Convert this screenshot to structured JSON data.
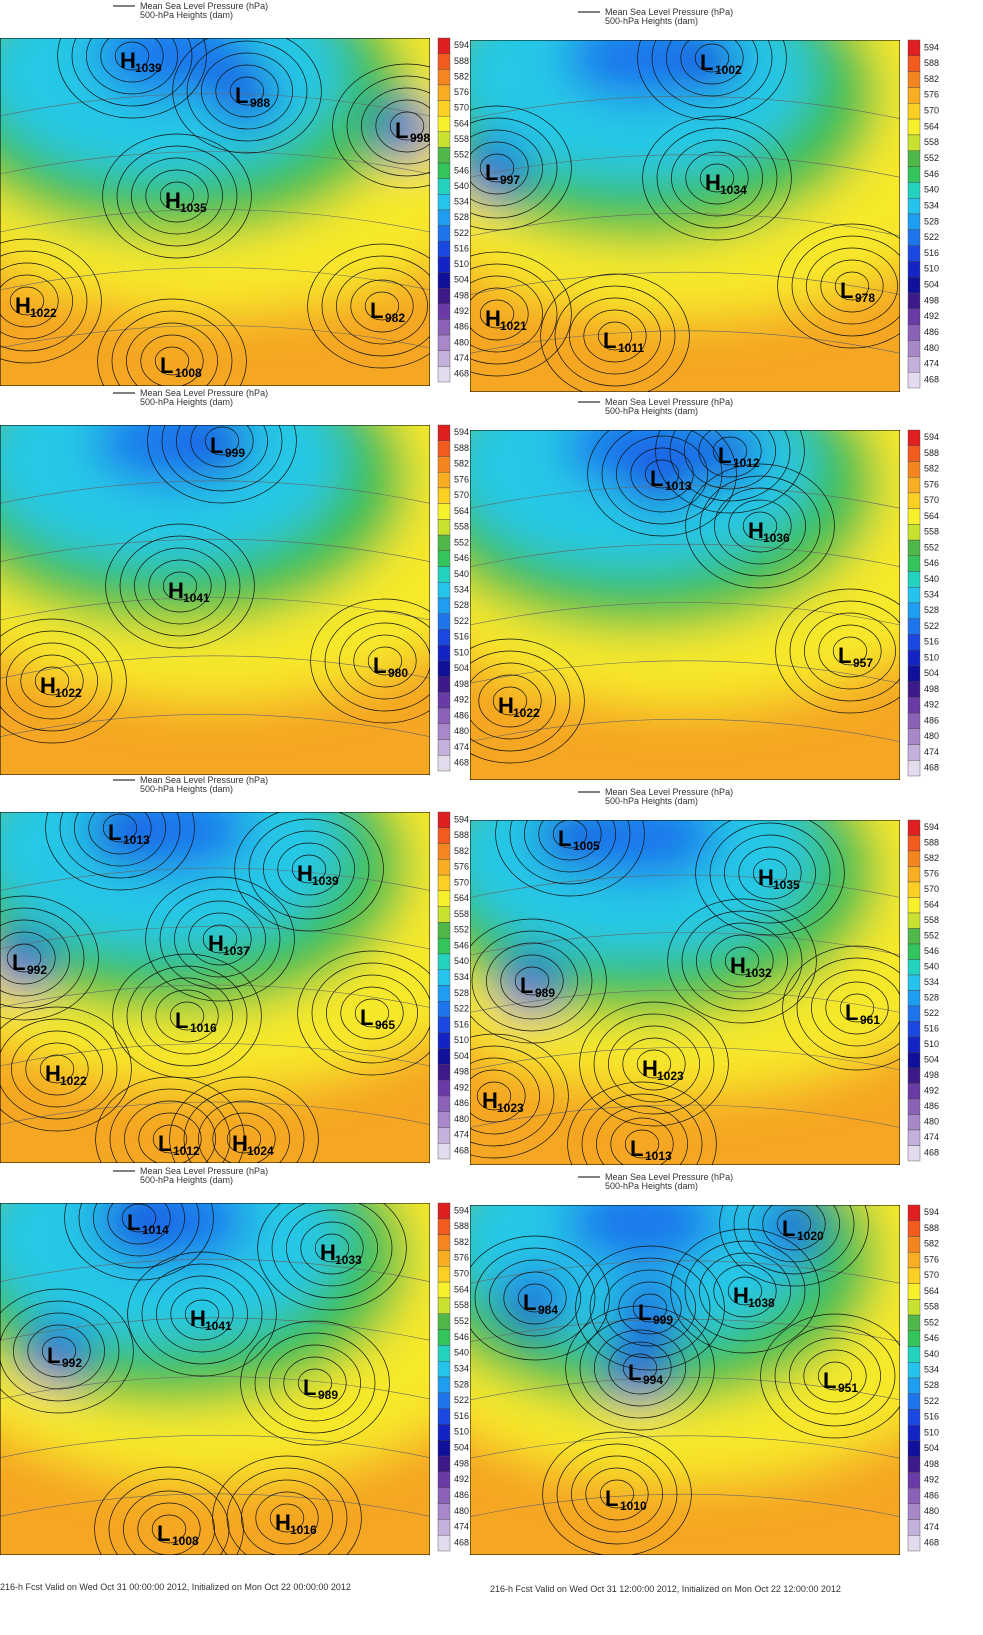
{
  "legend": {
    "mslp": "Mean Sea Level Pressure (hPa)",
    "heights": "500-hPa Heights (dam)"
  },
  "colorbar": {
    "levels": [
      "594",
      "588",
      "582",
      "576",
      "570",
      "564",
      "558",
      "552",
      "546",
      "540",
      "534",
      "528",
      "522",
      "516",
      "510",
      "504",
      "498",
      "492",
      "486",
      "480",
      "474",
      "468"
    ],
    "colors": [
      "#e02020",
      "#f25a1e",
      "#f5861f",
      "#f8ad22",
      "#fbd023",
      "#f7f02a",
      "#c9e22d",
      "#4fb848",
      "#34c45c",
      "#22d4c0",
      "#26c4ec",
      "#1e9ef0",
      "#1e74ec",
      "#1a48e0",
      "#1424c4",
      "#10109a",
      "#3d1a8a",
      "#6a3aa6",
      "#8c62b8",
      "#a888c8",
      "#c4b0dc",
      "#e4dcee"
    ]
  },
  "panels": [
    {
      "centers": [
        {
          "letter": "H",
          "value": "1039"
        },
        {
          "letter": "L",
          "value": "988"
        },
        {
          "letter": "L",
          "value": "998"
        },
        {
          "letter": "H",
          "value": "1035"
        },
        {
          "letter": "H",
          "value": "1022"
        },
        {
          "letter": "L",
          "value": "982"
        },
        {
          "letter": "L",
          "value": "1008"
        }
      ]
    },
    {
      "centers": [
        {
          "letter": "L",
          "value": "1002"
        },
        {
          "letter": "L",
          "value": "997"
        },
        {
          "letter": "H",
          "value": "1034"
        },
        {
          "letter": "L",
          "value": "978"
        },
        {
          "letter": "H",
          "value": "1021"
        },
        {
          "letter": "L",
          "value": "1011"
        }
      ]
    },
    {
      "centers": [
        {
          "letter": "L",
          "value": "999"
        },
        {
          "letter": "H",
          "value": "1041"
        },
        {
          "letter": "L",
          "value": "980"
        },
        {
          "letter": "H",
          "value": "1022"
        }
      ]
    },
    {
      "centers": [
        {
          "letter": "L",
          "value": "1012"
        },
        {
          "letter": "L",
          "value": "1013"
        },
        {
          "letter": "H",
          "value": "1036"
        },
        {
          "letter": "L",
          "value": "957"
        },
        {
          "letter": "H",
          "value": "1022"
        }
      ]
    },
    {
      "centers": [
        {
          "letter": "L",
          "value": "1013"
        },
        {
          "letter": "H",
          "value": "1039"
        },
        {
          "letter": "H",
          "value": "1037"
        },
        {
          "letter": "L",
          "value": "992"
        },
        {
          "letter": "L",
          "value": "1016"
        },
        {
          "letter": "L",
          "value": "965"
        },
        {
          "letter": "H",
          "value": "1022"
        },
        {
          "letter": "L",
          "value": "1012"
        },
        {
          "letter": "H",
          "value": "1024"
        }
      ]
    },
    {
      "centers": [
        {
          "letter": "L",
          "value": "1005"
        },
        {
          "letter": "H",
          "value": "1035"
        },
        {
          "letter": "H",
          "value": "1032"
        },
        {
          "letter": "L",
          "value": "989"
        },
        {
          "letter": "L",
          "value": "961"
        },
        {
          "letter": "H",
          "value": "1023"
        },
        {
          "letter": "H",
          "value": "1023"
        },
        {
          "letter": "L",
          "value": "1013"
        }
      ]
    },
    {
      "centers": [
        {
          "letter": "L",
          "value": "1014"
        },
        {
          "letter": "H",
          "value": "1033"
        },
        {
          "letter": "H",
          "value": "1041"
        },
        {
          "letter": "L",
          "value": "992"
        },
        {
          "letter": "L",
          "value": "989"
        },
        {
          "letter": "L",
          "value": "1008"
        },
        {
          "letter": "H",
          "value": "1016"
        }
      ]
    },
    {
      "centers": [
        {
          "letter": "L",
          "value": "1020"
        },
        {
          "letter": "L",
          "value": "984"
        },
        {
          "letter": "L",
          "value": "999"
        },
        {
          "letter": "H",
          "value": "1038"
        },
        {
          "letter": "L",
          "value": "994"
        },
        {
          "letter": "L",
          "value": "951"
        },
        {
          "letter": "L",
          "value": "1010"
        }
      ]
    }
  ],
  "captions": {
    "left": "216-h Fcst Valid on Wed Oct 31 00:00:00 2012, Initialized on Mon Oct 22 00:00:00 2012",
    "right": "216-h Fcst Valid on Wed Oct 31 12:00:00 2012, Initialized on Mon Oct 22 12:00:00 2012"
  }
}
